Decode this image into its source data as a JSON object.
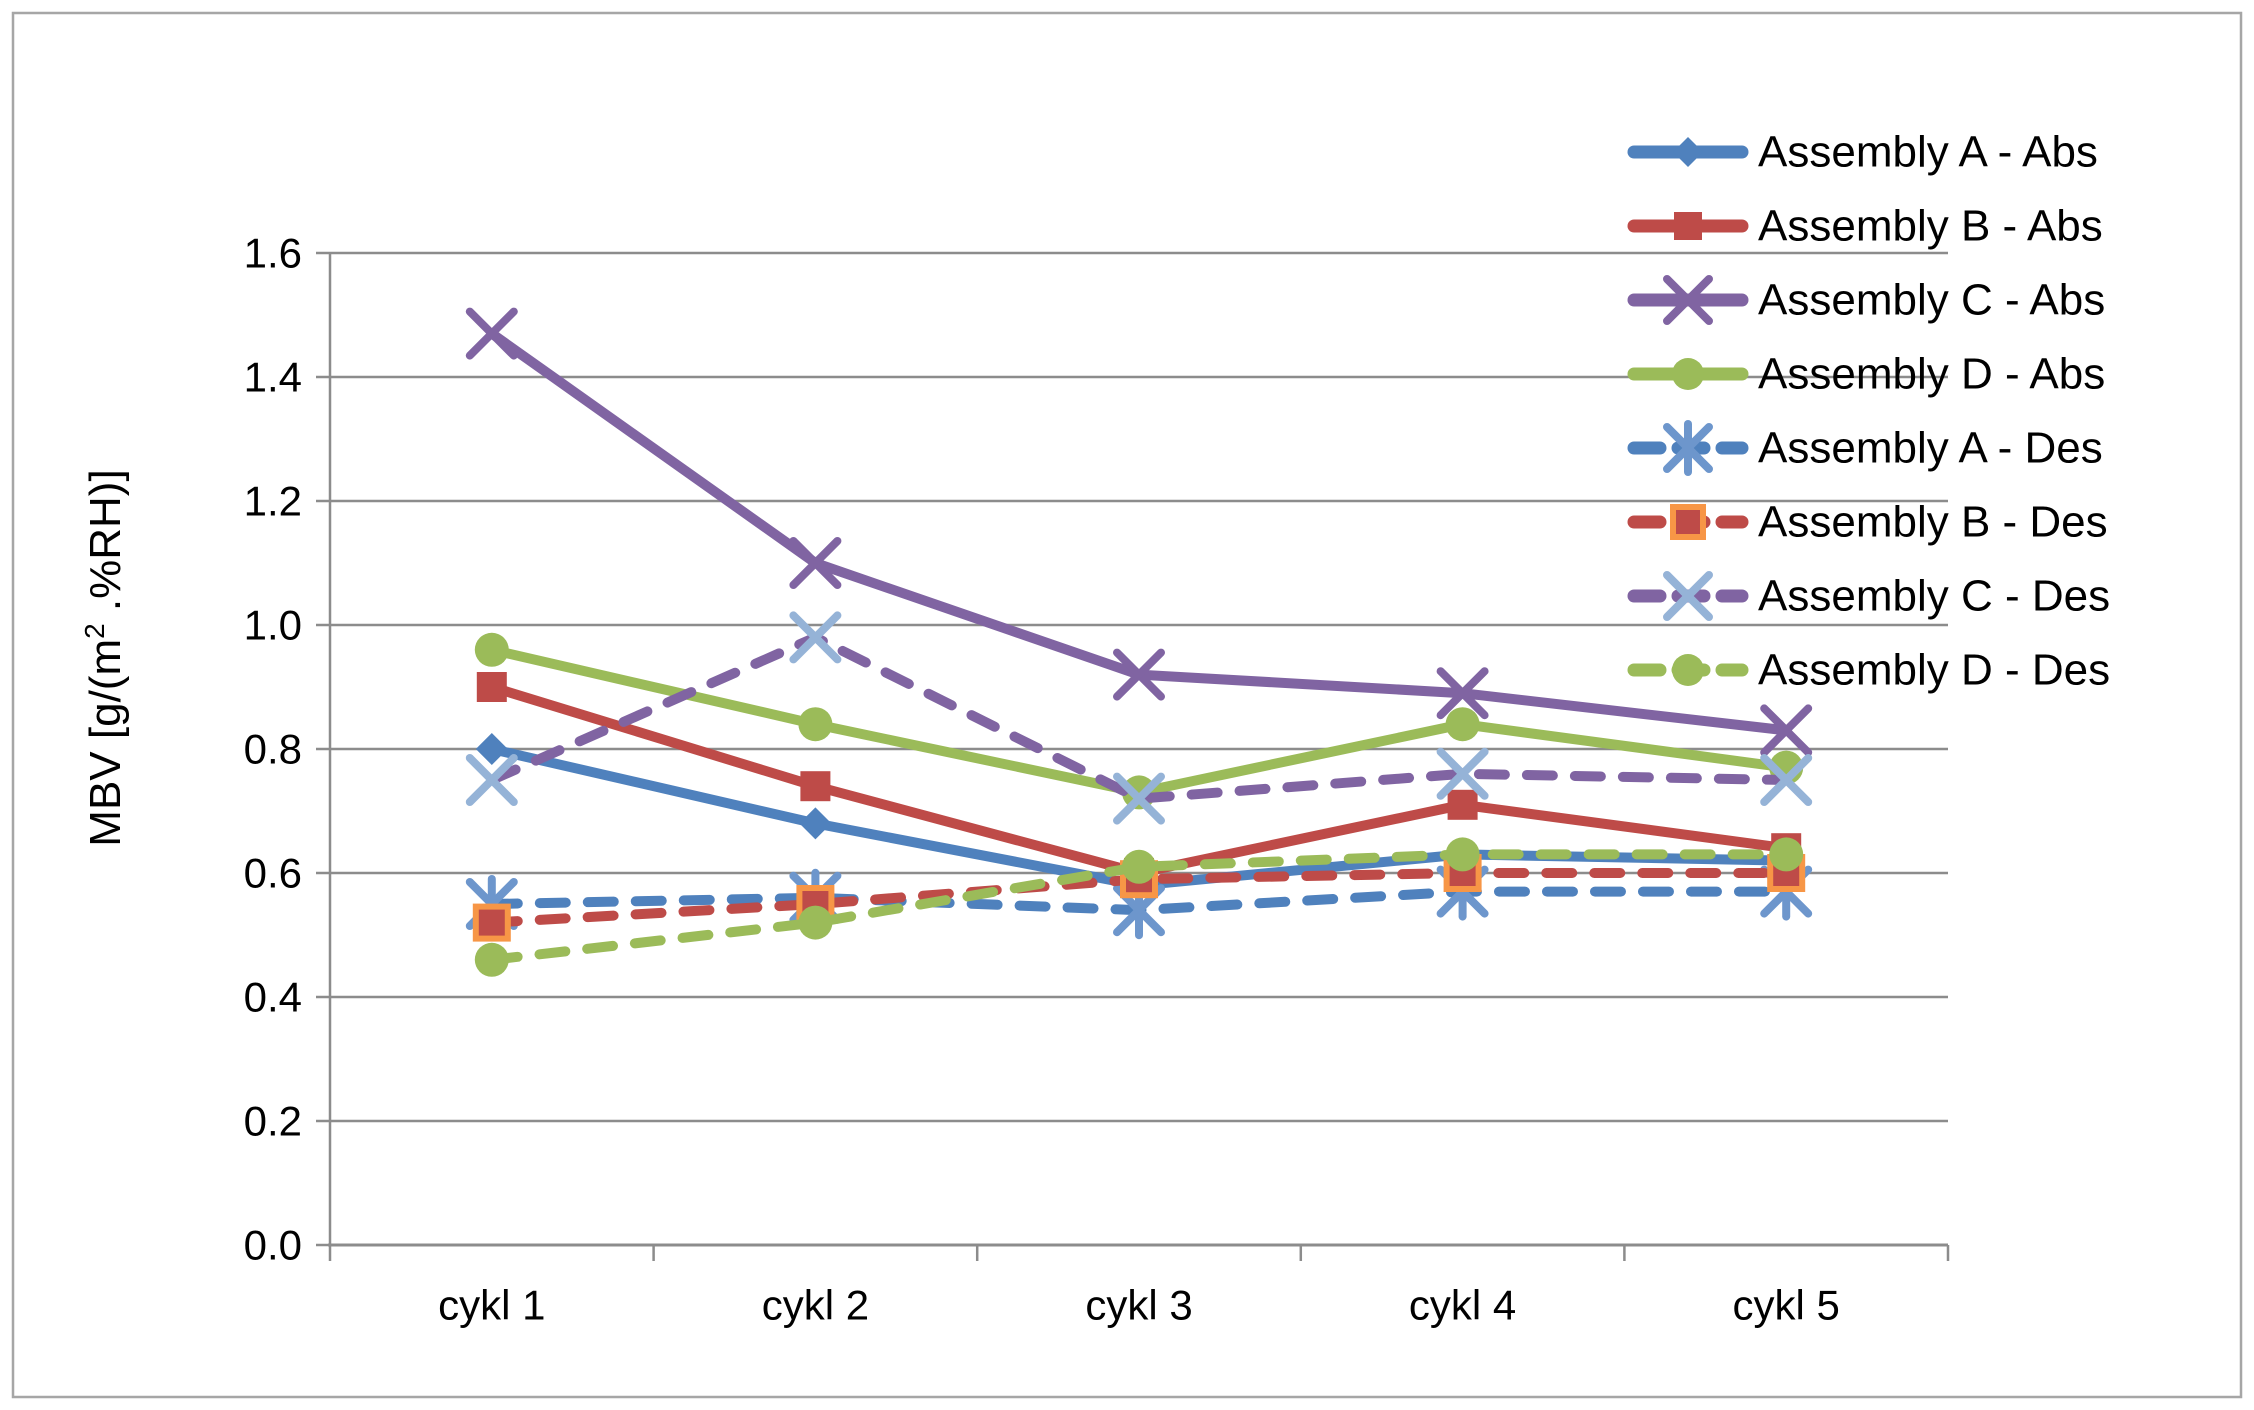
{
  "chart_data": {
    "type": "line",
    "title": "",
    "ylabel_prefix": "MBV [g/(m",
    "ylabel_superscript": "2",
    "ylabel_suffix": " .%RH)]",
    "categories": [
      "cykl 1",
      "cykl 2",
      "cykl 3",
      "cykl 4",
      "cykl 5"
    ],
    "y_ticks": [
      "0.0",
      "0.2",
      "0.4",
      "0.6",
      "0.8",
      "1.0",
      "1.2",
      "1.4",
      "1.6"
    ],
    "ylim": [
      0,
      1.6
    ],
    "grid": true,
    "legend_position": "right-top",
    "series": [
      {
        "name": "Assembly A - Abs",
        "values": [
          0.8,
          0.68,
          0.58,
          0.63,
          0.62
        ],
        "color": "#4F81BD",
        "line_style": "solid",
        "marker": "diamond",
        "marker_color": "#4F81BD"
      },
      {
        "name": "Assembly B - Abs",
        "values": [
          0.9,
          0.74,
          0.6,
          0.71,
          0.64
        ],
        "color": "#BE4B48",
        "line_style": "solid",
        "marker": "square",
        "marker_color": "#BE4B48"
      },
      {
        "name": "Assembly C - Abs",
        "values": [
          1.47,
          1.1,
          0.92,
          0.89,
          0.83
        ],
        "color": "#8064A2",
        "line_style": "solid",
        "marker": "x",
        "marker_color": "#8064A2"
      },
      {
        "name": "Assembly D - Abs",
        "values": [
          0.96,
          0.84,
          0.73,
          0.84,
          0.77
        ],
        "color": "#9BBB59",
        "line_style": "solid",
        "marker": "circle",
        "marker_color": "#9BBB59"
      },
      {
        "name": "Assembly A - Des",
        "values": [
          0.55,
          0.56,
          0.54,
          0.57,
          0.57
        ],
        "color": "#4F81BD",
        "line_style": "dashed",
        "marker": "asterisk",
        "marker_color": "#6D96CC"
      },
      {
        "name": "Assembly B - Des",
        "values": [
          0.52,
          0.55,
          0.59,
          0.6,
          0.6
        ],
        "color": "#BE4B48",
        "line_style": "dashed",
        "marker": "square-bordered",
        "marker_color": "#BE4B48",
        "marker_border": "#F79646"
      },
      {
        "name": "Assembly C - Des",
        "values": [
          0.75,
          0.98,
          0.72,
          0.76,
          0.75
        ],
        "color": "#8064A2",
        "line_style": "dashed",
        "marker": "x",
        "marker_color": "#95B3D7"
      },
      {
        "name": "Assembly D - Des",
        "values": [
          0.46,
          0.52,
          0.61,
          0.63,
          0.63
        ],
        "color": "#9BBB59",
        "line_style": "dashed",
        "marker": "circle",
        "marker_color": "#9BBB59"
      }
    ]
  },
  "style_colors": {
    "grid": "#8C8C8C",
    "axis": "#8C8C8C",
    "tick_text": "#000000",
    "legend_text": "#000000",
    "frame_border": "#A6A6A6",
    "background": "#FFFFFF"
  }
}
